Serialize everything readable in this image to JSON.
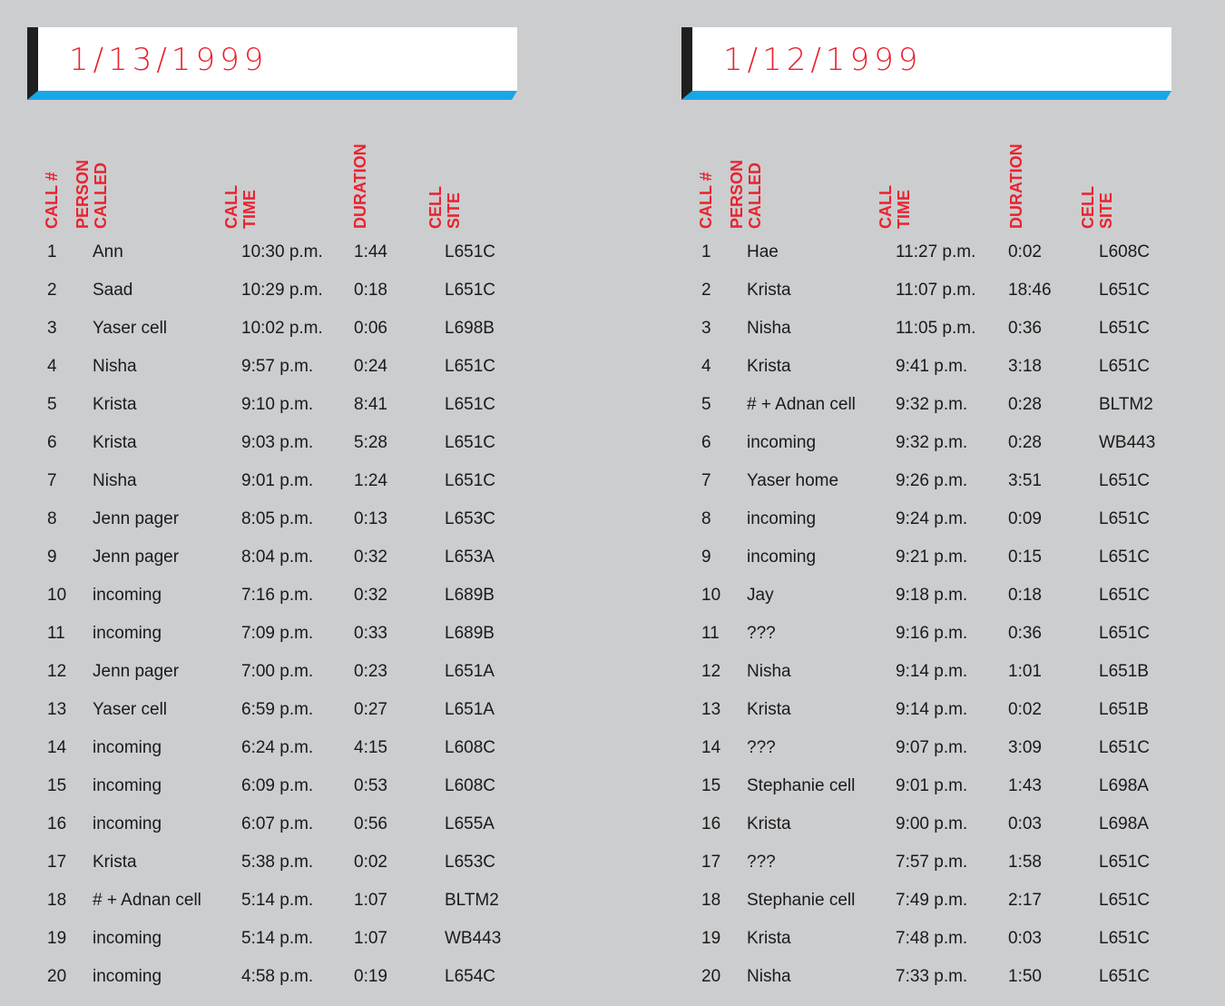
{
  "headers": {
    "call_number": [
      "CALL #"
    ],
    "person_called": [
      "PERSON",
      "CALLED"
    ],
    "call_time": [
      "CALL",
      "TIME"
    ],
    "duration": [
      "DURATION"
    ],
    "cell_site": [
      "CELL",
      "SITE"
    ]
  },
  "panels": [
    {
      "date": "1/13/1999",
      "rows": [
        {
          "num": "1",
          "person": "Ann",
          "time": "10:30 p.m.",
          "duration": "1:44",
          "site": "L651C"
        },
        {
          "num": "2",
          "person": "Saad",
          "time": "10:29 p.m.",
          "duration": "0:18",
          "site": "L651C"
        },
        {
          "num": "3",
          "person": "Yaser cell",
          "time": "10:02 p.m.",
          "duration": "0:06",
          "site": "L698B"
        },
        {
          "num": "4",
          "person": "Nisha",
          "time": "9:57 p.m.",
          "duration": "0:24",
          "site": "L651C"
        },
        {
          "num": "5",
          "person": "Krista",
          "time": "9:10 p.m.",
          "duration": "8:41",
          "site": "L651C"
        },
        {
          "num": "6",
          "person": "Krista",
          "time": "9:03 p.m.",
          "duration": "5:28",
          "site": "L651C"
        },
        {
          "num": "7",
          "person": "Nisha",
          "time": "9:01 p.m.",
          "duration": "1:24",
          "site": "L651C"
        },
        {
          "num": "8",
          "person": "Jenn pager",
          "time": "8:05 p.m.",
          "duration": "0:13",
          "site": "L653C"
        },
        {
          "num": "9",
          "person": "Jenn pager",
          "time": "8:04 p.m.",
          "duration": "0:32",
          "site": "L653A"
        },
        {
          "num": "10",
          "person": "incoming",
          "time": "7:16 p.m.",
          "duration": "0:32",
          "site": "L689B"
        },
        {
          "num": "11",
          "person": "incoming",
          "time": "7:09 p.m.",
          "duration": "0:33",
          "site": "L689B"
        },
        {
          "num": "12",
          "person": "Jenn pager",
          "time": "7:00 p.m.",
          "duration": "0:23",
          "site": "L651A"
        },
        {
          "num": "13",
          "person": "Yaser cell",
          "time": "6:59 p.m.",
          "duration": "0:27",
          "site": "L651A"
        },
        {
          "num": "14",
          "person": "incoming",
          "time": "6:24 p.m.",
          "duration": "4:15",
          "site": "L608C"
        },
        {
          "num": "15",
          "person": "incoming",
          "time": "6:09 p.m.",
          "duration": "0:53",
          "site": "L608C"
        },
        {
          "num": "16",
          "person": "incoming",
          "time": "6:07 p.m.",
          "duration": "0:56",
          "site": "L655A"
        },
        {
          "num": "17",
          "person": "Krista",
          "time": "5:38 p.m.",
          "duration": "0:02",
          "site": "L653C"
        },
        {
          "num": "18",
          "person": "# + Adnan cell",
          "time": "5:14 p.m.",
          "duration": "1:07",
          "site": "BLTM2"
        },
        {
          "num": "19",
          "person": "incoming",
          "time": "5:14 p.m.",
          "duration": "1:07",
          "site": "WB443"
        },
        {
          "num": "20",
          "person": "incoming",
          "time": "4:58 p.m.",
          "duration": "0:19",
          "site": "L654C"
        }
      ]
    },
    {
      "date": "1/12/1999",
      "rows": [
        {
          "num": "1",
          "person": "Hae",
          "time": "11:27 p.m.",
          "duration": "0:02",
          "site": "L608C"
        },
        {
          "num": "2",
          "person": "Krista",
          "time": "11:07 p.m.",
          "duration": "18:46",
          "site": "L651C"
        },
        {
          "num": "3",
          "person": "Nisha",
          "time": "11:05 p.m.",
          "duration": "0:36",
          "site": "L651C"
        },
        {
          "num": "4",
          "person": "Krista",
          "time": "9:41 p.m.",
          "duration": "3:18",
          "site": "L651C"
        },
        {
          "num": "5",
          "person": "# + Adnan cell",
          "time": "9:32 p.m.",
          "duration": "0:28",
          "site": "BLTM2"
        },
        {
          "num": "6",
          "person": "incoming",
          "time": "9:32 p.m.",
          "duration": "0:28",
          "site": "WB443"
        },
        {
          "num": "7",
          "person": "Yaser home",
          "time": "9:26 p.m.",
          "duration": "3:51",
          "site": "L651C"
        },
        {
          "num": "8",
          "person": "incoming",
          "time": "9:24 p.m.",
          "duration": "0:09",
          "site": "L651C"
        },
        {
          "num": "9",
          "person": "incoming",
          "time": "9:21 p.m.",
          "duration": "0:15",
          "site": "L651C"
        },
        {
          "num": "10",
          "person": "Jay",
          "time": "9:18 p.m.",
          "duration": "0:18",
          "site": "L651C"
        },
        {
          "num": "11",
          "person": "???",
          "time": "9:16 p.m.",
          "duration": "0:36",
          "site": "L651C"
        },
        {
          "num": "12",
          "person": "Nisha",
          "time": "9:14 p.m.",
          "duration": "1:01",
          "site": "L651B"
        },
        {
          "num": "13",
          "person": "Krista",
          "time": "9:14 p.m.",
          "duration": "0:02",
          "site": "L651B"
        },
        {
          "num": "14",
          "person": "???",
          "time": "9:07 p.m.",
          "duration": "3:09",
          "site": "L651C"
        },
        {
          "num": "15",
          "person": "Stephanie cell",
          "time": "9:01 p.m.",
          "duration": "1:43",
          "site": "L698A"
        },
        {
          "num": "16",
          "person": "Krista",
          "time": "9:00 p.m.",
          "duration": "0:03",
          "site": "L698A"
        },
        {
          "num": "17",
          "person": "???",
          "time": "7:57 p.m.",
          "duration": "1:58",
          "site": "L651C"
        },
        {
          "num": "18",
          "person": "Stephanie cell",
          "time": "7:49 p.m.",
          "duration": "2:17",
          "site": "L651C"
        },
        {
          "num": "19",
          "person": "Krista",
          "time": "7:48 p.m.",
          "duration": "0:03",
          "site": "L651C"
        },
        {
          "num": "20",
          "person": "Nisha",
          "time": "7:33 p.m.",
          "duration": "1:50",
          "site": "L651C"
        }
      ]
    }
  ]
}
